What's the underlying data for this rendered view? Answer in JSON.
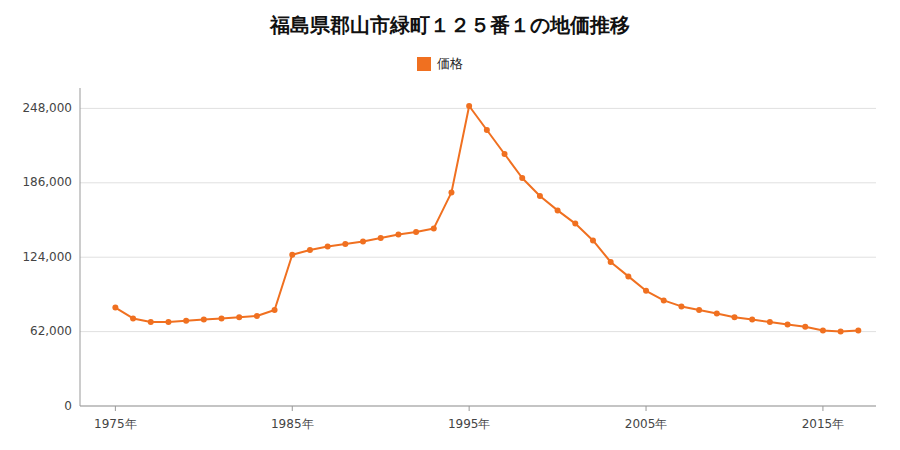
{
  "chart_data": {
    "type": "line",
    "title": "福島県郡山市緑町１２５番１の地価推移",
    "x": [
      1975,
      1976,
      1977,
      1978,
      1979,
      1980,
      1981,
      1982,
      1983,
      1984,
      1985,
      1986,
      1987,
      1988,
      1989,
      1990,
      1991,
      1992,
      1993,
      1994,
      1995,
      1996,
      1997,
      1998,
      1999,
      2000,
      2001,
      2002,
      2003,
      2004,
      2005,
      2006,
      2007,
      2008,
      2009,
      2010,
      2011,
      2012,
      2013,
      2014,
      2015,
      2016,
      2017
    ],
    "series": [
      {
        "name": "価格",
        "color": "#f07020",
        "marker": "circle",
        "values": [
          82000,
          73000,
          70000,
          70000,
          71000,
          72000,
          73000,
          74000,
          75000,
          80000,
          126000,
          130000,
          133000,
          135000,
          137000,
          140000,
          143000,
          145000,
          148000,
          178000,
          250000,
          230000,
          210000,
          190000,
          175000,
          163000,
          152000,
          138000,
          120000,
          108000,
          96000,
          88000,
          83000,
          80000,
          77000,
          74000,
          72000,
          70000,
          68000,
          66000,
          63000,
          62000,
          63000
        ]
      }
    ],
    "xlim": [
      1973,
      2018
    ],
    "xticks": [
      {
        "value": 1975,
        "label": "1975年"
      },
      {
        "value": 1985,
        "label": "1985年"
      },
      {
        "value": 1995,
        "label": "1995年"
      },
      {
        "value": 2005,
        "label": "2005年"
      },
      {
        "value": 2015,
        "label": "2015年"
      }
    ],
    "ylim": [
      0,
      265000
    ],
    "yticks": [
      0,
      {
        "value": 62000,
        "label": "62,000"
      },
      {
        "value": 124000,
        "label": "124,000"
      },
      {
        "value": 186000,
        "label": "186,000"
      },
      {
        "value": 248000,
        "label": "248,000"
      }
    ],
    "grid": true,
    "legend": "top"
  }
}
